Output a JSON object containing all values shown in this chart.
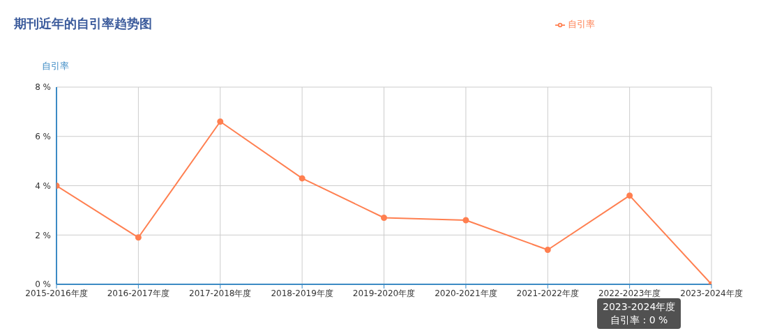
{
  "chart_data": {
    "type": "line",
    "title": "期刊近年的自引率趋势图",
    "ylabel": "自引率",
    "categories": [
      "2015-2016年度",
      "2016-2017年度",
      "2017-2018年度",
      "2018-2019年度",
      "2019-2020年度",
      "2020-2021年度",
      "2021-2022年度",
      "2022-2023年度",
      "2023-2024年度"
    ],
    "series": [
      {
        "name": "自引率",
        "color": "#ff7f50",
        "values": [
          4.0,
          1.9,
          6.6,
          4.3,
          2.7,
          2.6,
          1.4,
          3.6,
          0
        ]
      }
    ],
    "ylim": [
      0,
      8
    ],
    "yticks": [
      {
        "value": 0,
        "label": "0 %"
      },
      {
        "value": 2,
        "label": "2 %"
      },
      {
        "value": 4,
        "label": "4 %"
      },
      {
        "value": 6,
        "label": "6 %"
      },
      {
        "value": 8,
        "label": "8 %"
      }
    ],
    "grid": true,
    "legend": "top right",
    "marker": "circle",
    "line_style": "solid",
    "annotations": [
      "2023-2024年度",
      "自引率 : 0 %"
    ]
  }
}
